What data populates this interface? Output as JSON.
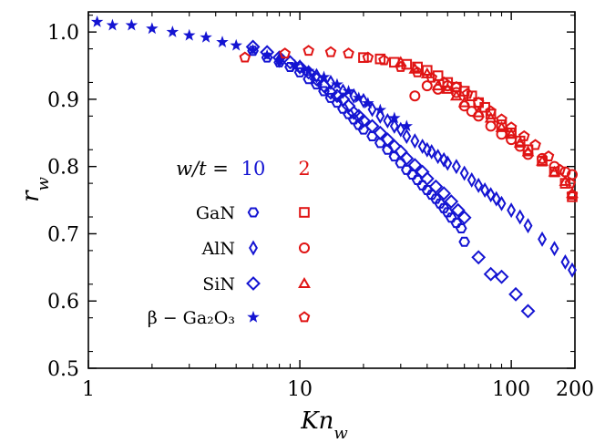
{
  "chart_data": {
    "type": "scatter",
    "x_scale": "log",
    "xlim": [
      1,
      200
    ],
    "ylim": [
      0.5,
      1.03
    ],
    "xlabel": "Kn_w",
    "ylabel": "r_w",
    "x_ticks": [
      1,
      10,
      100,
      200
    ],
    "x_tick_labels": [
      "1",
      "10",
      "100",
      "200"
    ],
    "y_ticks": [
      0.5,
      0.6,
      0.7,
      0.8,
      0.9,
      1.0
    ],
    "y_tick_labels": [
      "0.5",
      "0.6",
      "0.7",
      "0.8",
      "0.9",
      "1.0"
    ],
    "legend": {
      "header_label": "w/t =",
      "column_labels": [
        "10",
        "2"
      ],
      "column_colors": [
        "#1414d2",
        "#e01414"
      ],
      "row_labels": [
        "GaN",
        "AlN",
        "SiN",
        "β − Ga₂O₃"
      ],
      "row_markers": [
        "hexagon",
        "thin-diamond",
        "diamond",
        "star"
      ],
      "row_markers_ratio2": [
        "square",
        "circle",
        "triangle",
        "pentagon"
      ],
      "placement": "lower-left"
    },
    "series": [
      {
        "material": "GaN",
        "ratio": "10",
        "marker": "hexagon",
        "color": "#1414d2",
        "points": [
          [
            6,
            0.972
          ],
          [
            7,
            0.962
          ],
          [
            8,
            0.955
          ],
          [
            9,
            0.948
          ],
          [
            10,
            0.94
          ],
          [
            11,
            0.93
          ],
          [
            12,
            0.922
          ],
          [
            13,
            0.912
          ],
          [
            14,
            0.902
          ],
          [
            15,
            0.895
          ],
          [
            16,
            0.886
          ],
          [
            17,
            0.878
          ],
          [
            18,
            0.87
          ],
          [
            19,
            0.862
          ],
          [
            20,
            0.855
          ],
          [
            22,
            0.845
          ],
          [
            24,
            0.835
          ],
          [
            26,
            0.825
          ],
          [
            28,
            0.815
          ],
          [
            30,
            0.805
          ],
          [
            32,
            0.795
          ],
          [
            34,
            0.788
          ],
          [
            36,
            0.78
          ],
          [
            38,
            0.772
          ],
          [
            40,
            0.765
          ],
          [
            42,
            0.758
          ],
          [
            44,
            0.752
          ],
          [
            46,
            0.745
          ],
          [
            48,
            0.738
          ],
          [
            50,
            0.732
          ],
          [
            52,
            0.724
          ],
          [
            55,
            0.716
          ],
          [
            58,
            0.708
          ],
          [
            60,
            0.688
          ]
        ]
      },
      {
        "material": "AlN",
        "ratio": "10",
        "marker": "thin-diamond",
        "color": "#1414d2",
        "points": [
          [
            8,
            0.958
          ],
          [
            10,
            0.948
          ],
          [
            12,
            0.935
          ],
          [
            14,
            0.925
          ],
          [
            16,
            0.912
          ],
          [
            18,
            0.905
          ],
          [
            20,
            0.898
          ],
          [
            22,
            0.885
          ],
          [
            24,
            0.875
          ],
          [
            26,
            0.868
          ],
          [
            28,
            0.86
          ],
          [
            30,
            0.855
          ],
          [
            32,
            0.845
          ],
          [
            35,
            0.838
          ],
          [
            38,
            0.83
          ],
          [
            40,
            0.825
          ],
          [
            42,
            0.822
          ],
          [
            45,
            0.815
          ],
          [
            48,
            0.81
          ],
          [
            50,
            0.805
          ],
          [
            55,
            0.8
          ],
          [
            60,
            0.79
          ],
          [
            65,
            0.78
          ],
          [
            70,
            0.772
          ],
          [
            75,
            0.765
          ],
          [
            80,
            0.758
          ],
          [
            85,
            0.752
          ],
          [
            90,
            0.745
          ],
          [
            100,
            0.735
          ],
          [
            110,
            0.725
          ],
          [
            120,
            0.712
          ],
          [
            140,
            0.692
          ],
          [
            160,
            0.678
          ],
          [
            180,
            0.658
          ],
          [
            200,
            0.646
          ]
        ]
      },
      {
        "material": "SiN",
        "ratio": "10",
        "marker": "diamond",
        "color": "#1414d2",
        "points": [
          [
            6,
            0.978
          ],
          [
            7,
            0.97
          ],
          [
            8,
            0.962
          ],
          [
            9,
            0.955
          ],
          [
            10,
            0.948
          ],
          [
            11,
            0.94
          ],
          [
            12,
            0.93
          ],
          [
            13,
            0.92
          ],
          [
            14,
            0.91
          ],
          [
            15,
            0.905
          ],
          [
            16,
            0.9
          ],
          [
            17,
            0.89
          ],
          [
            18,
            0.88
          ],
          [
            19,
            0.875
          ],
          [
            20,
            0.868
          ],
          [
            22,
            0.86
          ],
          [
            24,
            0.85
          ],
          [
            26,
            0.84
          ],
          [
            28,
            0.83
          ],
          [
            30,
            0.822
          ],
          [
            32,
            0.812
          ],
          [
            35,
            0.802
          ],
          [
            38,
            0.792
          ],
          [
            40,
            0.782
          ],
          [
            44,
            0.77
          ],
          [
            48,
            0.76
          ],
          [
            52,
            0.748
          ],
          [
            56,
            0.735
          ],
          [
            60,
            0.724
          ],
          [
            70,
            0.665
          ],
          [
            80,
            0.64
          ],
          [
            90,
            0.636
          ],
          [
            105,
            0.61
          ],
          [
            120,
            0.585
          ]
        ]
      },
      {
        "material": "β − Ga2O3",
        "ratio": "10",
        "marker": "star",
        "color": "#1414d2",
        "points": [
          [
            1.1,
            1.015
          ],
          [
            1.3,
            1.01
          ],
          [
            1.6,
            1.01
          ],
          [
            2.0,
            1.005
          ],
          [
            2.5,
            1.0
          ],
          [
            3.0,
            0.995
          ],
          [
            3.6,
            0.992
          ],
          [
            4.3,
            0.985
          ],
          [
            5.0,
            0.98
          ],
          [
            6.0,
            0.973
          ],
          [
            7.0,
            0.965
          ],
          [
            8.0,
            0.958
          ],
          [
            9.5,
            0.95
          ],
          [
            11,
            0.942
          ],
          [
            13,
            0.933
          ],
          [
            15,
            0.922
          ],
          [
            17,
            0.912
          ],
          [
            19,
            0.902
          ],
          [
            21,
            0.894
          ],
          [
            24,
            0.884
          ],
          [
            28,
            0.872
          ],
          [
            32,
            0.86
          ]
        ]
      },
      {
        "material": "GaN",
        "ratio": "2",
        "marker": "square",
        "color": "#e01414",
        "points": [
          [
            20,
            0.962
          ],
          [
            24,
            0.96
          ],
          [
            28,
            0.955
          ],
          [
            32,
            0.952
          ],
          [
            36,
            0.948
          ],
          [
            40,
            0.943
          ],
          [
            45,
            0.935
          ],
          [
            50,
            0.925
          ],
          [
            55,
            0.918
          ],
          [
            60,
            0.912
          ],
          [
            65,
            0.905
          ],
          [
            70,
            0.895
          ],
          [
            75,
            0.888
          ],
          [
            80,
            0.878
          ],
          [
            90,
            0.862
          ],
          [
            100,
            0.85
          ],
          [
            110,
            0.838
          ],
          [
            120,
            0.825
          ],
          [
            140,
            0.808
          ],
          [
            160,
            0.792
          ],
          [
            180,
            0.775
          ],
          [
            200,
            0.755
          ]
        ]
      },
      {
        "material": "AlN",
        "ratio": "2",
        "marker": "circle",
        "color": "#e01414",
        "points": [
          [
            35,
            0.905
          ],
          [
            40,
            0.92
          ],
          [
            45,
            0.915
          ],
          [
            50,
            0.92
          ],
          [
            55,
            0.91
          ],
          [
            60,
            0.89
          ],
          [
            65,
            0.882
          ],
          [
            70,
            0.875
          ],
          [
            80,
            0.86
          ],
          [
            90,
            0.848
          ],
          [
            100,
            0.84
          ],
          [
            110,
            0.83
          ],
          [
            120,
            0.818
          ],
          [
            140,
            0.812
          ],
          [
            160,
            0.8
          ],
          [
            180,
            0.792
          ],
          [
            200,
            0.788
          ]
        ]
      },
      {
        "material": "SiN",
        "ratio": "2",
        "marker": "triangle",
        "color": "#e01414",
        "points": [
          [
            30,
            0.955
          ],
          [
            35,
            0.945
          ],
          [
            40,
            0.938
          ],
          [
            45,
            0.92
          ],
          [
            50,
            0.915
          ],
          [
            55,
            0.905
          ],
          [
            60,
            0.895
          ],
          [
            70,
            0.88
          ],
          [
            80,
            0.872
          ],
          [
            90,
            0.858
          ],
          [
            100,
            0.848
          ],
          [
            110,
            0.835
          ],
          [
            120,
            0.822
          ],
          [
            140,
            0.808
          ],
          [
            160,
            0.792
          ],
          [
            180,
            0.778
          ],
          [
            200,
            0.76
          ]
        ]
      },
      {
        "material": "β − Ga2O3",
        "ratio": "2",
        "marker": "pentagon",
        "color": "#e01414",
        "points": [
          [
            5.5,
            0.962
          ],
          [
            8.5,
            0.968
          ],
          [
            11,
            0.972
          ],
          [
            14,
            0.97
          ],
          [
            17,
            0.968
          ],
          [
            21,
            0.962
          ],
          [
            25,
            0.958
          ],
          [
            30,
            0.948
          ],
          [
            36,
            0.94
          ],
          [
            42,
            0.932
          ],
          [
            48,
            0.925
          ],
          [
            55,
            0.918
          ],
          [
            62,
            0.908
          ],
          [
            70,
            0.895
          ],
          [
            80,
            0.882
          ],
          [
            90,
            0.87
          ],
          [
            100,
            0.858
          ],
          [
            115,
            0.845
          ],
          [
            130,
            0.832
          ],
          [
            150,
            0.815
          ],
          [
            170,
            0.795
          ],
          [
            190,
            0.775
          ],
          [
            200,
            0.758
          ]
        ]
      }
    ]
  }
}
